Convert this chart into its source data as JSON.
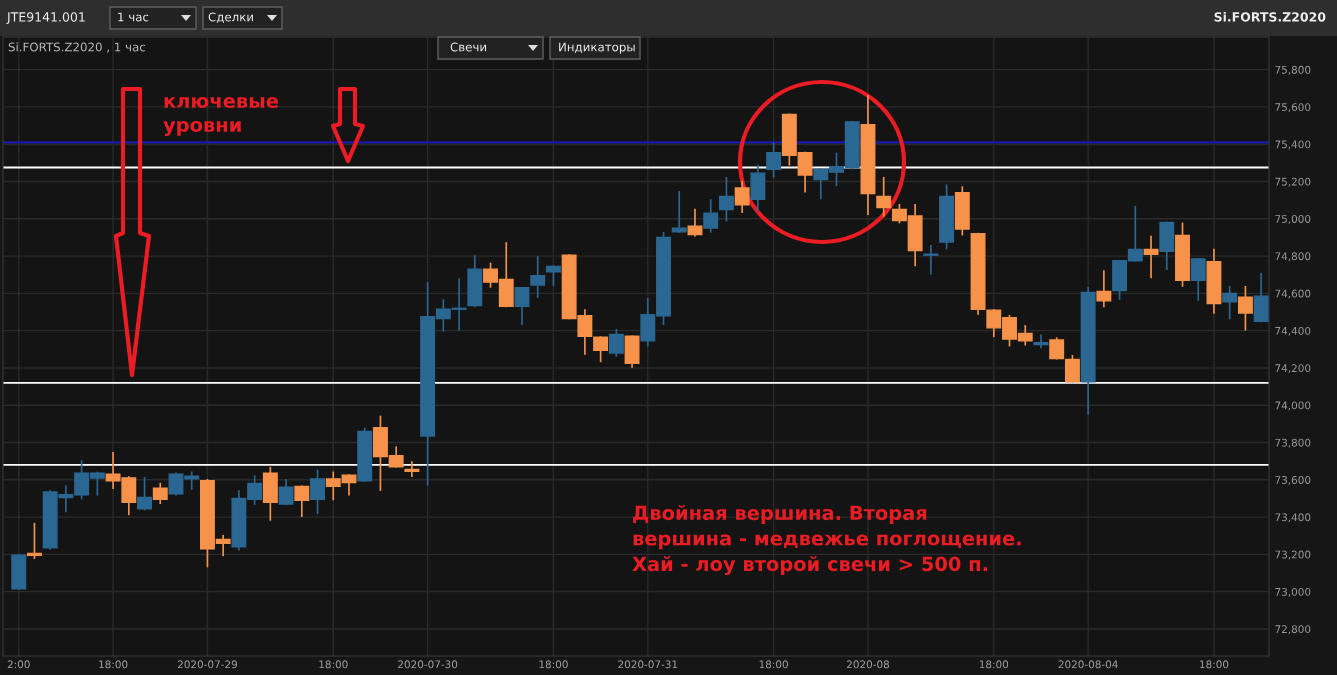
{
  "chart_data": {
    "type": "candlestick",
    "title": "Si.FORTS.Z2020 , 1 час",
    "categories": [
      "2:00",
      null,
      null,
      null,
      null,
      null,
      "18:00",
      null,
      null,
      null,
      null,
      null,
      "2020-07-29",
      null,
      null,
      null,
      null,
      null,
      null,
      null,
      "18:00",
      null,
      null,
      null,
      null,
      null,
      "2020-07-30",
      null,
      null,
      null,
      null,
      null,
      null,
      null,
      "18:00",
      null,
      null,
      null,
      null,
      null,
      "2020-07-31",
      null,
      null,
      null,
      null,
      null,
      null,
      null,
      "18:00",
      null,
      null,
      null,
      null,
      null,
      "2020-08",
      null,
      null,
      null,
      null,
      null,
      null,
      null,
      "18:00",
      null,
      null,
      null,
      null,
      null,
      "2020-08-04",
      null,
      null,
      null,
      null,
      null,
      null,
      null,
      "18:00",
      null,
      null,
      null
    ],
    "ohlc": [
      [
        73015,
        73195,
        73015,
        73195
      ],
      [
        73205,
        73365,
        73180,
        73195
      ],
      [
        73235,
        73540,
        73230,
        73535
      ],
      [
        73505,
        73565,
        73430,
        73520
      ],
      [
        73520,
        73700,
        73500,
        73635
      ],
      [
        73610,
        73640,
        73520,
        73635
      ],
      [
        73630,
        73745,
        73555,
        73595
      ],
      [
        73610,
        73615,
        73415,
        73480
      ],
      [
        73445,
        73610,
        73440,
        73505
      ],
      [
        73555,
        73580,
        73475,
        73495
      ],
      [
        73525,
        73635,
        73520,
        73630
      ],
      [
        73605,
        73640,
        73550,
        73620
      ],
      [
        73595,
        73600,
        73135,
        73230
      ],
      [
        73280,
        73300,
        73195,
        73260
      ],
      [
        73240,
        73540,
        73225,
        73500
      ],
      [
        73495,
        73620,
        73470,
        73580
      ],
      [
        73635,
        73665,
        73385,
        73480
      ],
      [
        73470,
        73600,
        73470,
        73560
      ],
      [
        73565,
        73565,
        73405,
        73490
      ],
      [
        73495,
        73650,
        73420,
        73605
      ],
      [
        73605,
        73640,
        73495,
        73565
      ],
      [
        73625,
        73625,
        73520,
        73585
      ],
      [
        73595,
        73875,
        73595,
        73860
      ],
      [
        73880,
        73940,
        73545,
        73725
      ],
      [
        73730,
        73775,
        73670,
        73670
      ],
      [
        73655,
        73695,
        73620,
        73645
      ],
      [
        73835,
        74655,
        73575,
        74475
      ],
      [
        74465,
        74565,
        74400,
        74515
      ],
      [
        74515,
        74675,
        74405,
        74520
      ],
      [
        74535,
        74800,
        74530,
        74730
      ],
      [
        74730,
        74760,
        74635,
        74660
      ],
      [
        74675,
        74870,
        74530,
        74530
      ],
      [
        74530,
        74630,
        74435,
        74630
      ],
      [
        74645,
        74795,
        74580,
        74695
      ],
      [
        74715,
        74745,
        74645,
        74745
      ],
      [
        74805,
        74805,
        74465,
        74465
      ],
      [
        74480,
        74510,
        74275,
        74370
      ],
      [
        74365,
        74365,
        74235,
        74295
      ],
      [
        74280,
        74405,
        74265,
        74380
      ],
      [
        74370,
        74370,
        74205,
        74225
      ],
      [
        74345,
        74570,
        74320,
        74485
      ],
      [
        74480,
        74925,
        74435,
        74900
      ],
      [
        74930,
        75145,
        74930,
        74950
      ],
      [
        74960,
        75050,
        74910,
        74915
      ],
      [
        74950,
        75100,
        74930,
        75030
      ],
      [
        75050,
        75220,
        74990,
        75120
      ],
      [
        75165,
        75200,
        75035,
        75075
      ],
      [
        75105,
        75285,
        75045,
        75245
      ],
      [
        75265,
        75405,
        75225,
        75355
      ],
      [
        75560,
        75560,
        75290,
        75340
      ],
      [
        75355,
        75355,
        75145,
        75235
      ],
      [
        75210,
        75265,
        75110,
        75265
      ],
      [
        75250,
        75350,
        75180,
        75280
      ],
      [
        75275,
        75520,
        75270,
        75520
      ],
      [
        75505,
        75660,
        75025,
        75135
      ],
      [
        75120,
        75220,
        75015,
        75060
      ],
      [
        75050,
        75075,
        74980,
        74990
      ],
      [
        75015,
        75075,
        74750,
        74830
      ],
      [
        74805,
        74855,
        74705,
        74810
      ],
      [
        74875,
        75180,
        74840,
        75120
      ],
      [
        75140,
        75170,
        74915,
        74945
      ],
      [
        74920,
        74920,
        74490,
        74515
      ],
      [
        74510,
        74510,
        74370,
        74415
      ],
      [
        74470,
        74480,
        74320,
        74355
      ],
      [
        74385,
        74425,
        74325,
        74345
      ],
      [
        74325,
        74375,
        74310,
        74335
      ],
      [
        74350,
        74360,
        74250,
        74250
      ],
      [
        74245,
        74265,
        74125,
        74125
      ],
      [
        74125,
        74630,
        73955,
        74605
      ],
      [
        74610,
        74720,
        74530,
        74560
      ],
      [
        74615,
        74775,
        74570,
        74775
      ],
      [
        74775,
        75065,
        74775,
        74835
      ],
      [
        74835,
        74905,
        74685,
        74810
      ],
      [
        74825,
        74980,
        74730,
        74980
      ],
      [
        74910,
        74975,
        74640,
        74670
      ],
      [
        74670,
        74785,
        74565,
        74785
      ],
      [
        74770,
        74835,
        74495,
        74545
      ],
      [
        74555,
        74635,
        74465,
        74600
      ],
      [
        74580,
        74635,
        74405,
        74495
      ],
      [
        74450,
        74705,
        74450,
        74585
      ]
    ],
    "colors": [
      "#2b6793",
      "#f7924a",
      "#2b6793",
      "#2b6793",
      "#2b6793",
      "#2b6793",
      "#f7924a",
      "#f7924a",
      "#2b6793",
      "#f7924a",
      "#2b6793",
      "#2b6793",
      "#f7924a",
      "#f7924a",
      "#2b6793",
      "#2b6793",
      "#f7924a",
      "#2b6793",
      "#f7924a",
      "#2b6793",
      "#f7924a",
      "#f7924a",
      "#2b6793",
      "#f7924a",
      "#f7924a",
      "#f7924a",
      "#2b6793",
      "#2b6793",
      "#2b6793",
      "#2b6793",
      "#f7924a",
      "#f7924a",
      "#2b6793",
      "#2b6793",
      "#2b6793",
      "#f7924a",
      "#f7924a",
      "#f7924a",
      "#2b6793",
      "#f7924a",
      "#2b6793",
      "#2b6793",
      "#2b6793",
      "#f7924a",
      "#2b6793",
      "#2b6793",
      "#f7924a",
      "#2b6793",
      "#2b6793",
      "#f7924a",
      "#f7924a",
      "#2b6793",
      "#2b6793",
      "#2b6793",
      "#f7924a",
      "#f7924a",
      "#f7924a",
      "#f7924a",
      "#2b6793",
      "#2b6793",
      "#f7924a",
      "#f7924a",
      "#f7924a",
      "#f7924a",
      "#f7924a",
      "#2b6793",
      "#f7924a",
      "#f7924a",
      "#2b6793",
      "#f7924a",
      "#2b6793",
      "#2b6793",
      "#f7924a",
      "#2b6793",
      "#f7924a",
      "#2b6793",
      "#f7924a",
      "#2b6793",
      "#f7924a",
      "#2b6793"
    ],
    "ylim": [
      72655,
      75975
    ],
    "yticks": [
      {
        "value": 72800,
        "label": "72,800"
      },
      {
        "value": 73000,
        "label": "73,000"
      },
      {
        "value": 73200,
        "label": "73,200"
      },
      {
        "value": 73400,
        "label": "73,400"
      },
      {
        "value": 73600,
        "label": "73,600"
      },
      {
        "value": 73800,
        "label": "73,800"
      },
      {
        "value": 74000,
        "label": "74,000"
      },
      {
        "value": 74200,
        "label": "74,200"
      },
      {
        "value": 74400,
        "label": "74,400"
      },
      {
        "value": 74600,
        "label": "74,600"
      },
      {
        "value": 74800,
        "label": "74,800"
      },
      {
        "value": 75000,
        "label": "75,000"
      },
      {
        "value": 75200,
        "label": "75,200"
      },
      {
        "value": 75400,
        "label": "75,400"
      },
      {
        "value": 75600,
        "label": "75,600"
      },
      {
        "value": 75800,
        "label": "75,800"
      }
    ],
    "grid": true,
    "ref_lines": [
      {
        "axis": "y",
        "value": 75410,
        "color": "#1818d0"
      },
      {
        "axis": "y",
        "value": 75275,
        "color": "#ffffff"
      },
      {
        "axis": "y",
        "value": 74120,
        "color": "#ffffff"
      },
      {
        "axis": "y",
        "value": 73680,
        "color": "#ffffff"
      }
    ],
    "annotations": [
      "ключевые\nуровни",
      "Двойная вершина. Вторая\nвершина - медвежье поглощение.\nХай - лоу второй свечи > 500 п.",
      "JTE9141.001",
      "1 час",
      "Сделки",
      "Si.FORTS.Z2020",
      "Свечи",
      "Индикаторы"
    ]
  }
}
